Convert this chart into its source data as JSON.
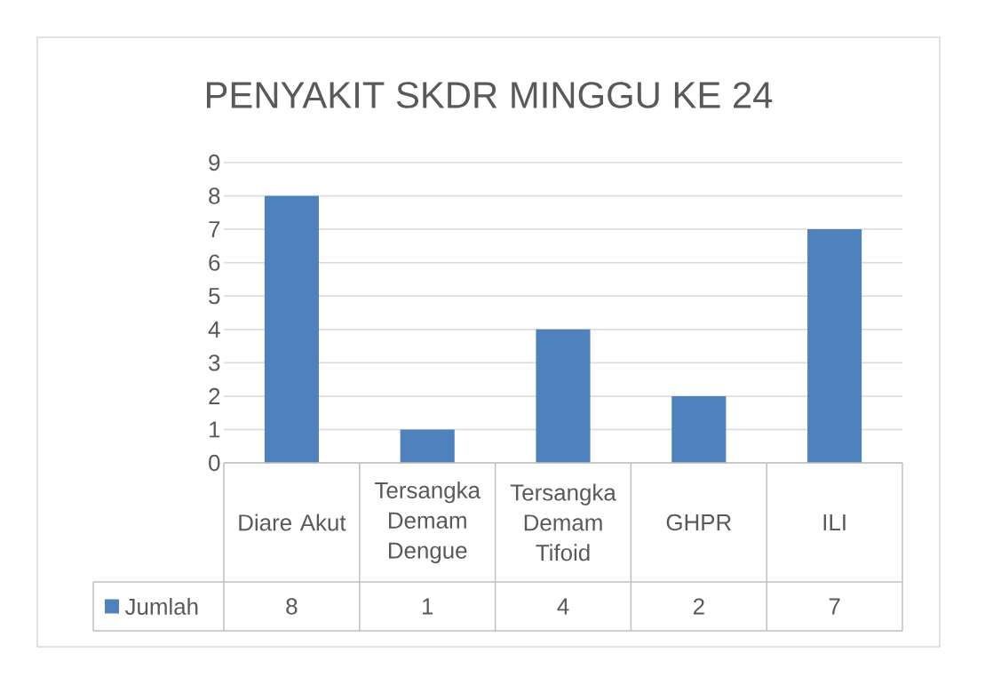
{
  "chart_data": {
    "type": "bar",
    "title": "PENYAKIT SKDR MINGGU KE 24",
    "categories": [
      "Diare Akut",
      "Tersangka Demam Dengue",
      "Tersangka Demam Tifoid",
      "GHPR",
      "ILI"
    ],
    "series": [
      {
        "name": "Jumlah",
        "color": "#4f81bd",
        "values": [
          8,
          1,
          4,
          2,
          7
        ]
      }
    ],
    "ylim": [
      0,
      9
    ],
    "yticks": [
      0,
      1,
      2,
      3,
      4,
      5,
      6,
      7,
      8,
      9
    ],
    "grid": "y",
    "legend": "bottom left",
    "data_labels": true
  }
}
